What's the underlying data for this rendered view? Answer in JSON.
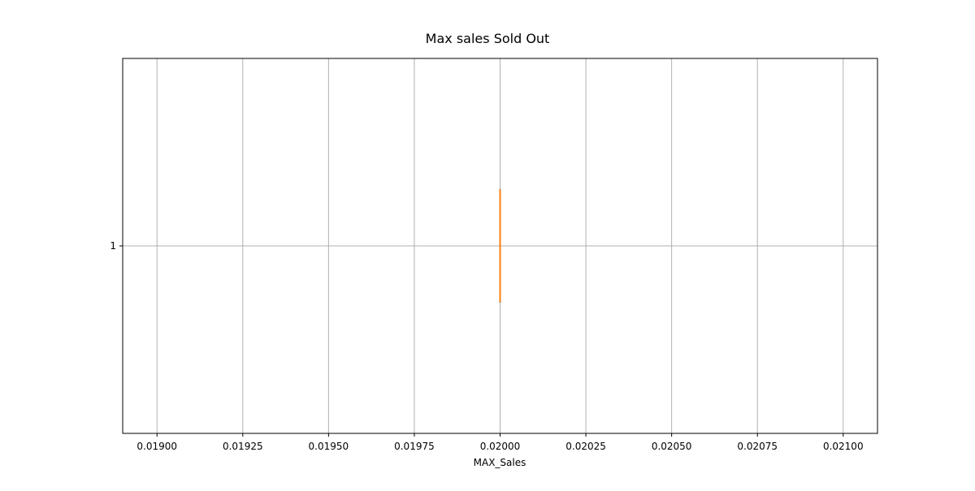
{
  "chart_data": {
    "type": "boxplot",
    "orientation": "horizontal",
    "title": "Max sales Sold Out",
    "xlabel": "MAX_Sales",
    "ylabel": "",
    "xlim": [
      0.0189,
      0.0211
    ],
    "ylim": [
      0.5,
      1.5
    ],
    "x_ticks": [
      0.019,
      0.01925,
      0.0195,
      0.01975,
      0.02,
      0.02025,
      0.0205,
      0.02075,
      0.021
    ],
    "x_tick_labels": [
      "0.01900",
      "0.01925",
      "0.01950",
      "0.01975",
      "0.02000",
      "0.02025",
      "0.02050",
      "0.02075",
      "0.02100"
    ],
    "y_ticks": [
      1
    ],
    "y_tick_labels": [
      "1"
    ],
    "grid": true,
    "boxes": [
      {
        "position": 1,
        "min": 0.02,
        "q1": 0.02,
        "median": 0.02,
        "q3": 0.02,
        "max": 0.02
      }
    ],
    "colors": {
      "box": "#000000",
      "median": "#ff7f0e",
      "grid": "#b0b0b0"
    }
  }
}
